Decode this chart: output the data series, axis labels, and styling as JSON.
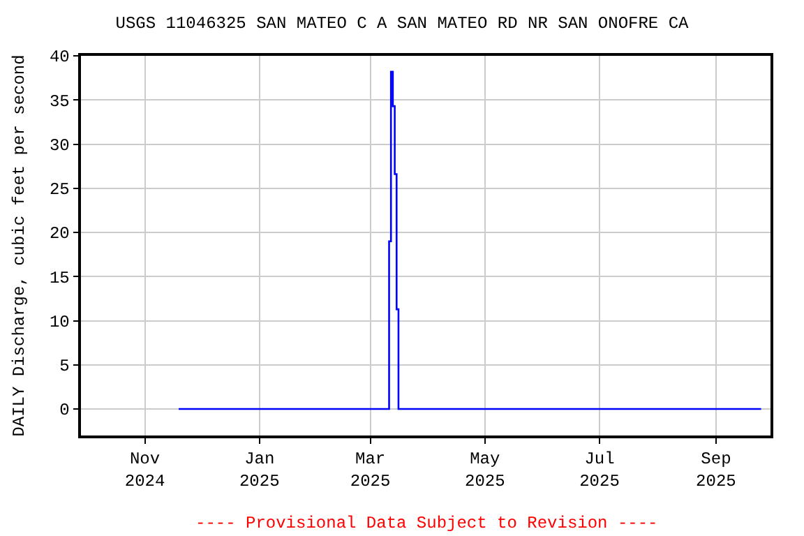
{
  "chart_data": {
    "type": "step",
    "title": "USGS 11046325 SAN MATEO C A SAN MATEO RD NR SAN ONOFRE CA",
    "ylabel": "DAILY Discharge, cubic feet per second",
    "x": [
      "2024-11-19",
      "2025-03-10",
      "2025-03-11",
      "2025-03-12",
      "2025-03-13",
      "2025-03-14",
      "2025-03-15",
      "2025-03-16",
      "2025-09-25"
    ],
    "series": [
      {
        "color": "#0000ff",
        "values": [
          0,
          0,
          19,
          38.2,
          34.3,
          26.6,
          11.3,
          0,
          0
        ]
      }
    ],
    "xlim": [
      "2024-09-28",
      "2025-09-30"
    ],
    "xticks": [
      {
        "value": "2024-11-01",
        "label": "Nov\n2024"
      },
      {
        "value": "2025-01-01",
        "label": "Jan\n2025"
      },
      {
        "value": "2025-03-01",
        "label": "Mar\n2025"
      },
      {
        "value": "2025-05-01",
        "label": "May\n2025"
      },
      {
        "value": "2025-07-01",
        "label": "Jul\n2025"
      },
      {
        "value": "2025-09-01",
        "label": "Sep\n2025"
      }
    ],
    "ylim": [
      -3,
      40
    ],
    "yticks": [
      0,
      5,
      10,
      15,
      20,
      25,
      30,
      35,
      40
    ],
    "grid": true,
    "legend": false,
    "annotations": [
      "---- Provisional Data Subject to Revision ----"
    ]
  }
}
